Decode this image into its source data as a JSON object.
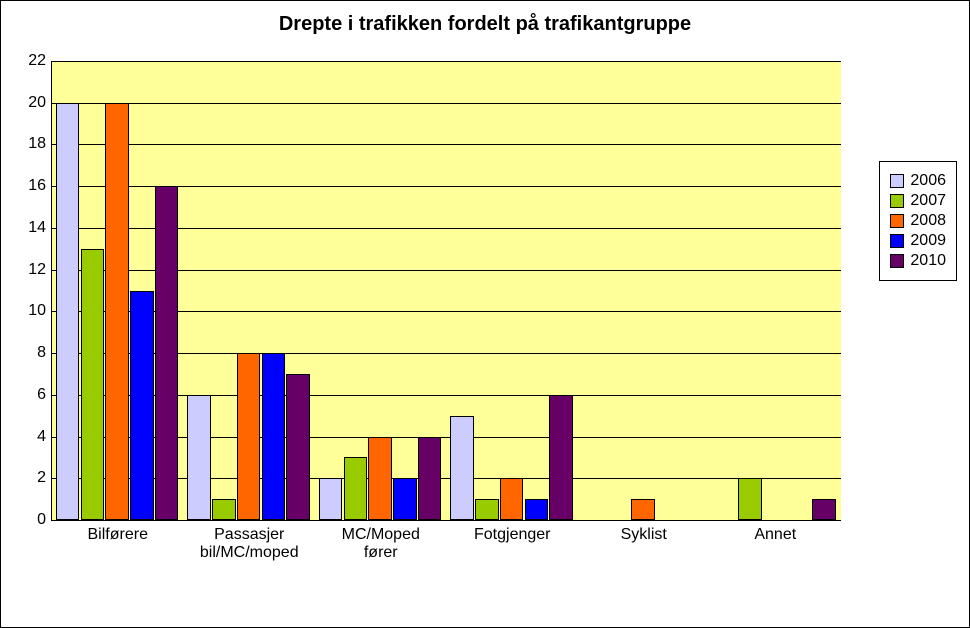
{
  "chart": {
    "type": "bar",
    "title": "Drepte i trafikken fordelt på trafikantgruppe",
    "title_fontsize": 20,
    "background_color": "#ffff99",
    "grid_color": "#000000",
    "axis_color": "#000000",
    "tick_fontsize": 16,
    "categories": [
      "Bilførere",
      "Passasjer\nbil/MC/moped",
      "MC/Moped\nfører",
      "Fotgjenger",
      "Syklist",
      "Annet"
    ],
    "series": [
      {
        "name": "2006",
        "color": "#ccccff",
        "values": [
          20,
          6,
          2,
          5,
          0,
          0
        ]
      },
      {
        "name": "2007",
        "color": "#99cc00",
        "values": [
          13,
          1,
          3,
          1,
          0,
          2
        ]
      },
      {
        "name": "2008",
        "color": "#ff6600",
        "values": [
          20,
          8,
          4,
          2,
          1,
          0
        ]
      },
      {
        "name": "2009",
        "color": "#0000ff",
        "values": [
          11,
          8,
          2,
          1,
          0,
          0
        ]
      },
      {
        "name": "2010",
        "color": "#660066",
        "values": [
          16,
          7,
          4,
          6,
          0,
          1
        ]
      }
    ],
    "ylim": [
      0,
      22
    ],
    "ytick_step": 2,
    "bar_rel_width": 0.13,
    "group_inner_pad": 0.03,
    "legend_position": "right"
  }
}
